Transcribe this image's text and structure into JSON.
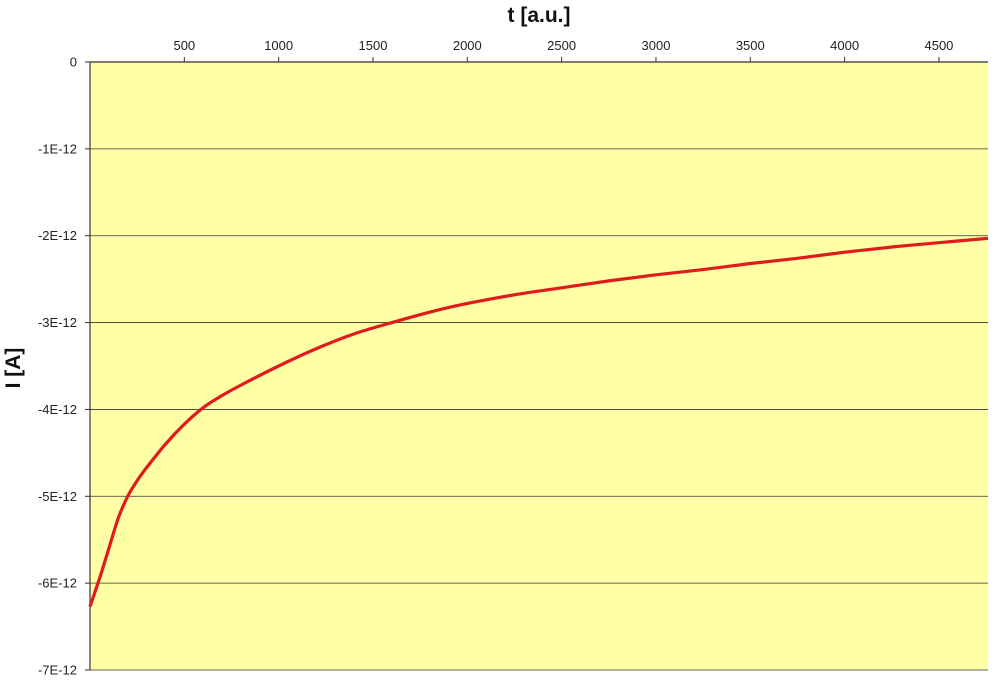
{
  "chart_data": {
    "type": "line",
    "title": "",
    "xlabel": "t [a.u.]",
    "ylabel": "I [A]",
    "xlim": [
      0,
      4760
    ],
    "ylim": [
      -7e-12,
      0
    ],
    "x_ticks": [
      500,
      1000,
      1500,
      2000,
      2500,
      3000,
      3500,
      4000,
      4500
    ],
    "x_tick_labels": [
      "500",
      "1000",
      "1500",
      "2000",
      "2500",
      "3000",
      "3500",
      "4000",
      "4500"
    ],
    "y_ticks": [
      0,
      -1e-12,
      -2e-12,
      -3e-12,
      -4e-12,
      -5e-12,
      -6e-12,
      -7e-12
    ],
    "y_tick_labels": [
      "0",
      "-1E-12",
      "-2E-12",
      "-3E-12",
      "-4E-12",
      "-5E-12",
      "-6E-12",
      "-7E-12"
    ],
    "x_axis_position": "top",
    "grid": {
      "horizontal": true,
      "vertical": false
    },
    "legend": "none",
    "colors": {
      "plot_background": "#ffffa6",
      "line": "#e01b1b",
      "grid": "#333333"
    },
    "series": [
      {
        "x": [
          0,
          50,
          100,
          150,
          200,
          250,
          300,
          400,
          500,
          600,
          700,
          800,
          1000,
          1200,
          1400,
          1600,
          1800,
          2000,
          2250,
          2500,
          2750,
          3000,
          3250,
          3500,
          3750,
          4000,
          4250,
          4500,
          4760
        ],
        "values": [
          -6.27e-12,
          -5.95e-12,
          -5.6e-12,
          -5.25e-12,
          -5e-12,
          -4.82e-12,
          -4.67e-12,
          -4.4e-12,
          -4.17e-12,
          -3.98e-12,
          -3.84e-12,
          -3.72e-12,
          -3.5e-12,
          -3.3e-12,
          -3.13e-12,
          -3e-12,
          -2.88e-12,
          -2.78e-12,
          -2.68e-12,
          -2.6e-12,
          -2.52e-12,
          -2.45e-12,
          -2.39e-12,
          -2.32e-12,
          -2.26e-12,
          -2.19e-12,
          -2.13e-12,
          -2.08e-12,
          -2.03e-12
        ]
      }
    ]
  }
}
